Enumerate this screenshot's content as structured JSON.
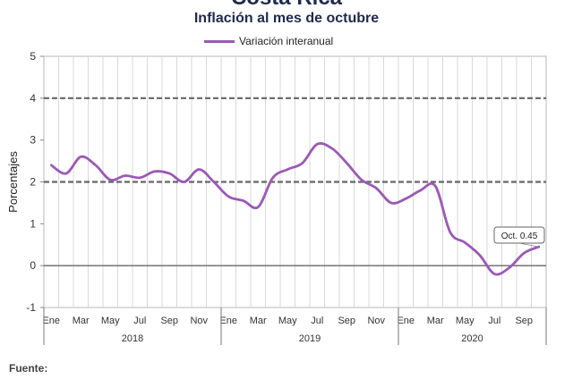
{
  "header": {
    "top_title": "Costa Rica",
    "subtitle": "Inflación al mes de octubre"
  },
  "footer": {
    "source_label": "Fuente:"
  },
  "chart_data": {
    "type": "line",
    "title": "Inflación al mes de octubre",
    "ylabel": "Porcentajes",
    "ylim": [
      -1,
      5
    ],
    "yticks": [
      -1,
      0,
      1,
      2,
      3,
      4,
      5
    ],
    "grid": true,
    "legend_position": "top-center",
    "color": "#9b59b6",
    "x": [
      "Ene 2018",
      "Feb 2018",
      "Mar 2018",
      "Abr 2018",
      "May 2018",
      "Jun 2018",
      "Jul 2018",
      "Ago 2018",
      "Sep 2018",
      "Oct 2018",
      "Nov 2018",
      "Dic 2018",
      "Ene 2019",
      "Feb 2019",
      "Mar 2019",
      "Abr 2019",
      "May 2019",
      "Jun 2019",
      "Jul 2019",
      "Ago 2019",
      "Sep 2019",
      "Oct 2019",
      "Nov 2019",
      "Dic 2019",
      "Ene 2020",
      "Feb 2020",
      "Mar 2020",
      "Abr 2020",
      "May 2020",
      "Jun 2020",
      "Jul 2020",
      "Ago 2020",
      "Sep 2020",
      "Oct 2020"
    ],
    "month_tick_labels": [
      "Ene",
      "",
      "Mar",
      "",
      "May",
      "",
      "Jul",
      "",
      "Sep",
      "",
      "Nov",
      "",
      "Ene",
      "",
      "Mar",
      "",
      "May",
      "",
      "Jul",
      "",
      "Sep",
      "",
      "Nov",
      "",
      "Ene",
      "",
      "Mar",
      "",
      "May",
      "",
      "Jul",
      "",
      "Sep",
      ""
    ],
    "years": [
      "2018",
      "2019",
      "2020"
    ],
    "series": [
      {
        "name": "Variación interanual",
        "values": [
          2.4,
          2.2,
          2.6,
          2.4,
          2.05,
          2.15,
          2.1,
          2.25,
          2.2,
          2.0,
          2.3,
          2.0,
          1.65,
          1.55,
          1.4,
          2.1,
          2.3,
          2.45,
          2.9,
          2.8,
          2.45,
          2.05,
          1.85,
          1.5,
          1.6,
          1.8,
          1.9,
          0.8,
          0.55,
          0.25,
          -0.2,
          -0.05,
          0.3,
          0.45
        ]
      }
    ],
    "reference_lines": [
      2,
      4
    ],
    "annotation": {
      "text": "Oct. 0.45"
    }
  }
}
